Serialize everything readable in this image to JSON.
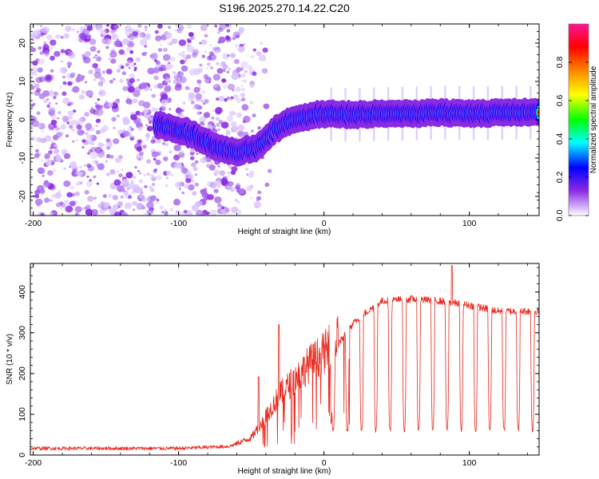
{
  "figure_title": "S196.2025.270.14.22.C20",
  "chart_data": [
    {
      "type": "heatmap",
      "title": "S196.2025.270.14.22.C20",
      "xlabel": "Height of straight line (km)",
      "ylabel": "Frequency (Hz)",
      "xlim": [
        -202,
        148
      ],
      "ylim": [
        -25,
        25
      ],
      "xticks": [
        -200,
        -100,
        0,
        100
      ],
      "yticks": [
        -20,
        -10,
        0,
        10,
        20
      ],
      "xtick_labels": [
        "-200",
        "-100",
        "0",
        "100"
      ],
      "ytick_labels": [
        "-20",
        "-10",
        "0",
        "10",
        "20"
      ],
      "colorbar": {
        "label": "Normalized spectral amplitude",
        "range": [
          0,
          1
        ],
        "ticks": [
          0.0,
          0.2,
          0.4,
          0.6,
          0.8
        ],
        "tick_labels": [
          "0.0",
          "0.2",
          "0.4",
          "0.6",
          "0.8"
        ],
        "colormap": [
          "#ffffff",
          "#d9b8ff",
          "#8a2be2",
          "#0000ff",
          "#00ffff",
          "#00ff00",
          "#ffff00",
          "#ff8c00",
          "#ff0000",
          "#ff1493"
        ]
      },
      "ridge": {
        "description": "Doppler frequency ridge of signal",
        "points": [
          {
            "x": -110,
            "y": -1.5
          },
          {
            "x": -90,
            "y": -4
          },
          {
            "x": -75,
            "y": -7
          },
          {
            "x": -60,
            "y": -8.5
          },
          {
            "x": -45,
            "y": -7
          },
          {
            "x": -35,
            "y": -3
          },
          {
            "x": -25,
            "y": -0.5
          },
          {
            "x": -10,
            "y": 1
          },
          {
            "x": 0,
            "y": 1.5
          },
          {
            "x": 20,
            "y": 1.3
          },
          {
            "x": 40,
            "y": 1.5
          },
          {
            "x": 60,
            "y": 1.6
          },
          {
            "x": 80,
            "y": 1.9
          },
          {
            "x": 100,
            "y": 1.7
          },
          {
            "x": 120,
            "y": 1.8
          },
          {
            "x": 148,
            "y": 1.9
          }
        ]
      }
    },
    {
      "type": "line",
      "xlabel": "Height of straight line (km)",
      "ylabel": "SNR (10 * v/v)",
      "xlim": [
        -202,
        148
      ],
      "ylim": [
        0,
        470
      ],
      "xticks": [
        -200,
        -100,
        0,
        100
      ],
      "yticks": [
        0,
        100,
        200,
        300,
        400
      ],
      "xtick_labels": [
        "-200",
        "-100",
        "0",
        "100"
      ],
      "ytick_labels": [
        "0",
        "100",
        "200",
        "300",
        "400"
      ],
      "series": [
        {
          "name": "SNR",
          "color": "#e8281e",
          "envelope": [
            {
              "x": -202,
              "y": 15
            },
            {
              "x": -100,
              "y": 15
            },
            {
              "x": -65,
              "y": 20
            },
            {
              "x": -50,
              "y": 40
            },
            {
              "x": -40,
              "y": 90
            },
            {
              "x": -30,
              "y": 140
            },
            {
              "x": -20,
              "y": 175
            },
            {
              "x": -10,
              "y": 210
            },
            {
              "x": 0,
              "y": 235
            },
            {
              "x": 10,
              "y": 270
            },
            {
              "x": 20,
              "y": 320
            },
            {
              "x": 30,
              "y": 350
            },
            {
              "x": 40,
              "y": 375
            },
            {
              "x": 60,
              "y": 380
            },
            {
              "x": 80,
              "y": 375
            },
            {
              "x": 100,
              "y": 365
            },
            {
              "x": 120,
              "y": 350
            },
            {
              "x": 148,
              "y": 350
            }
          ],
          "peaks": [
            {
              "x": -45,
              "y": 192
            },
            {
              "x": -31,
              "y": 320
            },
            {
              "x": 88,
              "y": 465
            }
          ],
          "periodic_dropouts": {
            "start_x": 5,
            "period_x": 9.8,
            "width_x": 2.6,
            "min_y": 60
          }
        }
      ]
    }
  ]
}
